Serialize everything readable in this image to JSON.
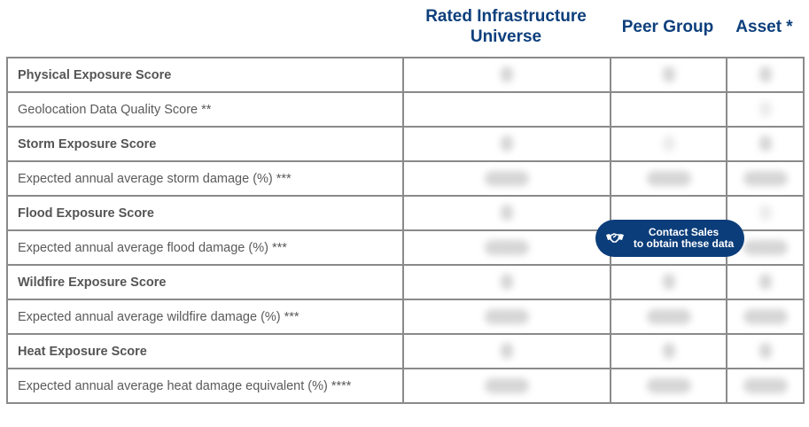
{
  "columns": {
    "universe": "Rated Infrastructure Universe",
    "peer": "Peer Group",
    "asset": "Asset *"
  },
  "rows": [
    {
      "label": "Physical Exposure Score",
      "bold": true
    },
    {
      "label": "Geolocation Data Quality Score **",
      "bold": false
    },
    {
      "label": "Storm Exposure Score",
      "bold": true
    },
    {
      "label": "Expected annual average storm damage (%) ***",
      "bold": false
    },
    {
      "label": "Flood Exposure Score",
      "bold": true
    },
    {
      "label": "Expected annual average flood damage (%) ***",
      "bold": false
    },
    {
      "label": "Wildfire Exposure Score",
      "bold": true
    },
    {
      "label": "Expected annual average wildfire damage (%) ***",
      "bold": false
    },
    {
      "label": "Heat Exposure Score",
      "bold": true
    },
    {
      "label": "Expected annual average heat damage equivalent (%) ****",
      "bold": false
    }
  ],
  "cta": {
    "line1": "Contact Sales",
    "line2": "to obtain these data",
    "icon": "handshake-icon"
  },
  "colors": {
    "heading": "#0d3f7c",
    "cta_background": "#0b3d7a",
    "border": "#8a8a8a"
  }
}
